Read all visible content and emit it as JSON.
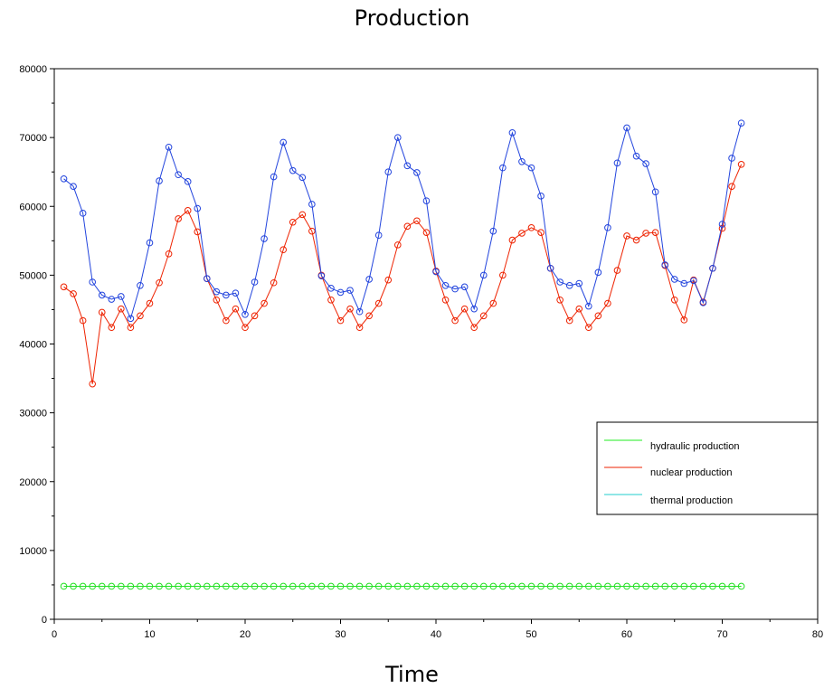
{
  "chart_data": {
    "type": "line",
    "title": "Production",
    "xlabel": "Time",
    "ylabel": "",
    "xlim": [
      0,
      80
    ],
    "ylim": [
      0,
      80000
    ],
    "x_ticks": [
      0,
      10,
      20,
      30,
      40,
      50,
      60,
      70,
      80
    ],
    "y_ticks": [
      0,
      10000,
      20000,
      30000,
      40000,
      50000,
      60000,
      70000,
      80000
    ],
    "grid": false,
    "legend_position": "right",
    "x": [
      1,
      2,
      3,
      4,
      5,
      6,
      7,
      8,
      9,
      10,
      11,
      12,
      13,
      14,
      15,
      16,
      17,
      18,
      19,
      20,
      21,
      22,
      23,
      24,
      25,
      26,
      27,
      28,
      29,
      30,
      31,
      32,
      33,
      34,
      35,
      36,
      37,
      38,
      39,
      40,
      41,
      42,
      43,
      44,
      45,
      46,
      47,
      48,
      49,
      50,
      51,
      52,
      53,
      54,
      55,
      56,
      57,
      58,
      59,
      60,
      61,
      62,
      63,
      64,
      65,
      66,
      67,
      68,
      69,
      70,
      71,
      72
    ],
    "series": [
      {
        "name": "hydraulic production",
        "color": "#22e022",
        "values": [
          4800,
          4800,
          4800,
          4800,
          4800,
          4800,
          4800,
          4800,
          4800,
          4800,
          4800,
          4800,
          4800,
          4800,
          4800,
          4800,
          4800,
          4800,
          4800,
          4800,
          4800,
          4800,
          4800,
          4800,
          4800,
          4800,
          4800,
          4800,
          4800,
          4800,
          4800,
          4800,
          4800,
          4800,
          4800,
          4800,
          4800,
          4800,
          4800,
          4800,
          4800,
          4800,
          4800,
          4800,
          4800,
          4800,
          4800,
          4800,
          4800,
          4800,
          4800,
          4800,
          4800,
          4800,
          4800,
          4800,
          4800,
          4800,
          4800,
          4800,
          4800,
          4800,
          4800,
          4800,
          4800,
          4800,
          4800,
          4800,
          4800,
          4800,
          4800,
          4800
        ]
      },
      {
        "name": "nuclear production",
        "color": "#ee2200",
        "values": [
          48300,
          47300,
          43400,
          34200,
          44600,
          42400,
          45100,
          42400,
          44100,
          45900,
          48900,
          53100,
          58200,
          59400,
          56300,
          49500,
          46400,
          43400,
          45100,
          42400,
          44100,
          45900,
          48900,
          53700,
          57700,
          58800,
          56400,
          50000,
          46400,
          43400,
          45100,
          42400,
          44100,
          45900,
          49300,
          54400,
          57100,
          57900,
          56200,
          50600,
          46400,
          43400,
          45100,
          42400,
          44100,
          45900,
          50000,
          55100,
          56100,
          56900,
          56200,
          51000,
          46400,
          43400,
          45100,
          42400,
          44100,
          45900,
          50700,
          55700,
          55100,
          56100,
          56200,
          51400,
          46400,
          43500,
          49300,
          46100,
          51000,
          56800,
          62900,
          66100
        ]
      },
      {
        "name": "thermal production",
        "color": "#2244dd",
        "values": [
          64000,
          62900,
          59000,
          49000,
          47100,
          46500,
          46900,
          43700,
          48500,
          54700,
          63700,
          68600,
          64600,
          63600,
          59700,
          49500,
          47600,
          47100,
          47400,
          44300,
          49000,
          55300,
          64300,
          69300,
          65200,
          64200,
          60300,
          49900,
          48100,
          47500,
          47800,
          44700,
          49400,
          55800,
          65000,
          70000,
          65900,
          64900,
          60800,
          50500,
          48500,
          48000,
          48300,
          45100,
          50000,
          56400,
          65600,
          70700,
          66500,
          65600,
          61500,
          51000,
          49000,
          48500,
          48800,
          45500,
          50400,
          56900,
          66300,
          71400,
          67300,
          66200,
          62100,
          51500,
          49400,
          48800,
          49200,
          46000,
          51000,
          57400,
          67000,
          72100
        ]
      }
    ],
    "legend": [
      {
        "label": "hydraulic production",
        "color": "#22ee22"
      },
      {
        "label": "nuclear production",
        "color": "#ee2200"
      },
      {
        "label": "thermal production",
        "color": "#22cccc"
      }
    ]
  }
}
